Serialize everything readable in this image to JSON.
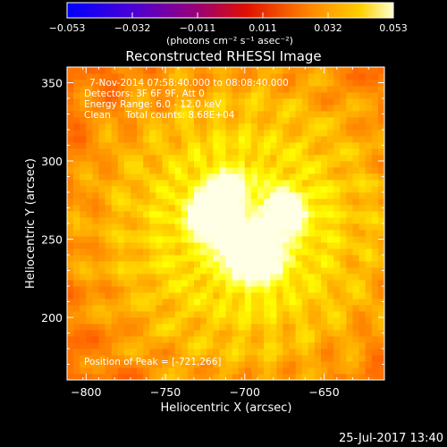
{
  "chart_data": {
    "type": "heatmap",
    "title": "Reconstructed RHESSI Image",
    "xlabel": "Heliocentric X (arcsec)",
    "ylabel": "Heliocentric Y (arcsec)",
    "xlim": [
      -812,
      -612
    ],
    "ylim": [
      160,
      360
    ],
    "xticks": [
      -800,
      -750,
      -700,
      -650
    ],
    "yticks": [
      200,
      250,
      300,
      350
    ],
    "colorbar": {
      "label": "(photons cm⁻² s⁻¹ asec⁻²)",
      "range": [
        -0.053,
        0.053
      ],
      "ticks": [
        "−0.053",
        "−0.032",
        "−0.011",
        "0.011",
        "0.032",
        "0.053"
      ],
      "colormap": "hot-blue"
    },
    "annotations": [
      "7-Nov-2014 07:58:40.000 to 08:08:40.000",
      "Detectors: 3F 6F 9F, Att 0",
      "Energy Range: 6.0 - 12.0 keV",
      "Clean     Total counts: 8.68E+04"
    ],
    "peak_label": "Position of Peak = [-721,266]",
    "sources": [
      {
        "x": -721,
        "y": 266,
        "peak": 1.0,
        "sigma": 9
      },
      {
        "x": -712,
        "y": 282,
        "peak": 0.62,
        "sigma": 8
      },
      {
        "x": -675,
        "y": 267,
        "peak": 0.72,
        "sigma": 9
      },
      {
        "x": -693,
        "y": 239,
        "peak": 0.78,
        "sigma": 11
      },
      {
        "x": -707,
        "y": 250,
        "peak": 0.55,
        "sigma": 8
      }
    ]
  },
  "footer": {
    "timestamp": "25-Jul-2017 13:40"
  }
}
